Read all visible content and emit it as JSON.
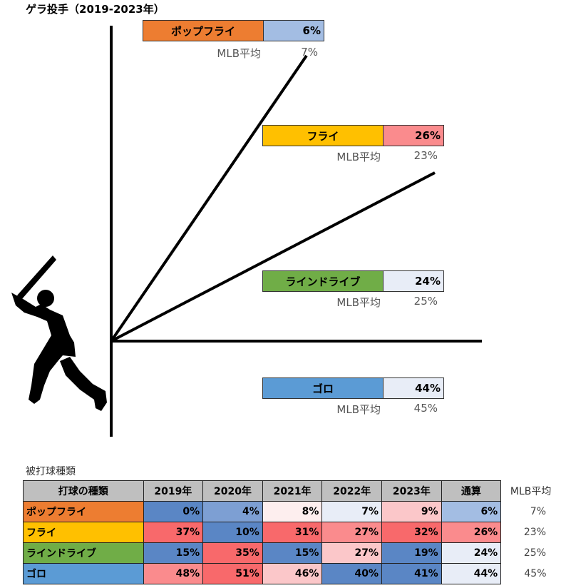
{
  "title": "ゲラ投手（2019-2023年）",
  "colors": {
    "popfly": "#ed7d31",
    "fly": "#ffc000",
    "liner": "#70ad47",
    "grounder": "#5b9bd5",
    "silhouette": "#000000"
  },
  "labels": {
    "mlb_avg_label": "MLB平均",
    "popfly": {
      "name": "ポップフライ",
      "pct": "6%",
      "avg": "7%"
    },
    "fly": {
      "name": "フライ",
      "pct": "26%",
      "avg": "23%"
    },
    "liner": {
      "name": "ラインドライブ",
      "pct": "24%",
      "avg": "25%"
    },
    "grounder": {
      "name": "ゴロ",
      "pct": "44%",
      "avg": "45%"
    }
  },
  "table_caption": "被打球種類",
  "chart_data": {
    "type": "table",
    "columns": [
      "打球の種類",
      "2019年",
      "2020年",
      "2021年",
      "2022年",
      "2023年",
      "通算",
      "MLB平均"
    ],
    "rows": [
      {
        "name": "ポップフライ",
        "values": [
          0,
          4,
          8,
          7,
          9,
          6
        ],
        "mlb_avg": 7
      },
      {
        "name": "フライ",
        "values": [
          37,
          10,
          31,
          27,
          32,
          26
        ],
        "mlb_avg": 23
      },
      {
        "name": "ラインドライブ",
        "values": [
          15,
          35,
          15,
          27,
          19,
          24
        ],
        "mlb_avg": 25
      },
      {
        "name": "ゴロ",
        "values": [
          48,
          51,
          46,
          40,
          41,
          44
        ],
        "mlb_avg": 45
      }
    ],
    "unit": "%",
    "cell_colors": [
      [
        "#5a86c5",
        "#7d9fd3",
        "#fdeeee",
        "#e8edf7",
        "#fbc7c9",
        "#a3bde3"
      ],
      [
        "#f8696b",
        "#5a86c5",
        "#f8696b",
        "#fa8b8d",
        "#f8696b",
        "#fa8b8d"
      ],
      [
        "#5a86c5",
        "#f8696b",
        "#5a86c5",
        "#fbc7c9",
        "#5a86c5",
        "#e8edf7"
      ],
      [
        "#fa8b8d",
        "#f8696b",
        "#fbc7c9",
        "#5a86c5",
        "#5a86c5",
        "#e8edf7"
      ]
    ],
    "pct_colors": {
      "popfly": "#a3bde3",
      "fly": "#fa8b8d",
      "liner": "#e8edf7",
      "grounder": "#e8edf7"
    }
  }
}
